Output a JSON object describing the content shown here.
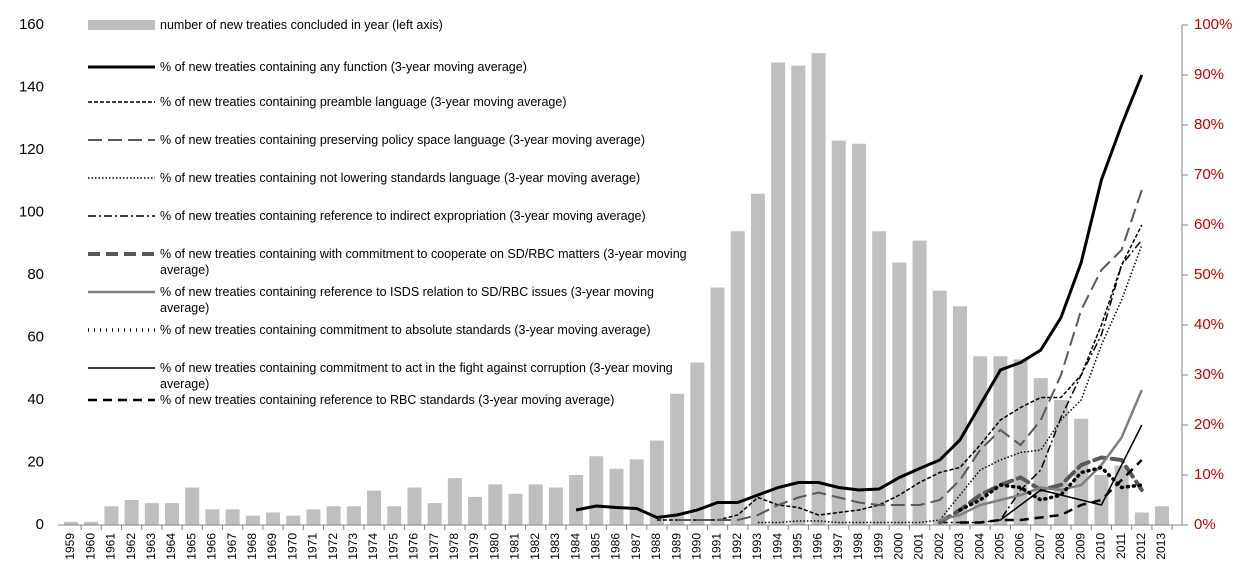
{
  "chart_data": {
    "type": "bar_line",
    "categories": [
      "1959",
      "1960",
      "1961",
      "1962",
      "1963",
      "1964",
      "1965",
      "1966",
      "1967",
      "1968",
      "1969",
      "1970",
      "1971",
      "1972",
      "1973",
      "1974",
      "1975",
      "1976",
      "1977",
      "1978",
      "1979",
      "1980",
      "1981",
      "1982",
      "1983",
      "1984",
      "1985",
      "1986",
      "1987",
      "1988",
      "1989",
      "1990",
      "1991",
      "1992",
      "1993",
      "1994",
      "1995",
      "1996",
      "1997",
      "1998",
      "1999",
      "2000",
      "2001",
      "2002",
      "2003",
      "2004",
      "2005",
      "2006",
      "2007",
      "2008",
      "2009",
      "2010",
      "2011",
      "2012",
      "2013"
    ],
    "bars": {
      "name": "number of new treaties concluded in year (left axis)",
      "color": "#bfbfbf",
      "values": [
        1,
        1,
        6,
        8,
        7,
        7,
        12,
        5,
        5,
        3,
        4,
        3,
        5,
        6,
        6,
        11,
        6,
        12,
        7,
        15,
        9,
        13,
        10,
        13,
        12,
        16,
        22,
        18,
        21,
        27,
        42,
        52,
        76,
        94,
        106,
        148,
        147,
        151,
        123,
        122,
        94,
        84,
        91,
        75,
        70,
        54,
        54,
        53,
        47,
        40,
        34,
        16,
        19,
        4,
        6
      ]
    },
    "series": [
      {
        "name": "% of new treaties containing any function (3-year moving average)",
        "color": "#000000",
        "axis": "y2",
        "values": [
          null,
          null,
          null,
          null,
          null,
          null,
          null,
          null,
          null,
          null,
          null,
          null,
          null,
          null,
          null,
          null,
          null,
          null,
          null,
          null,
          null,
          null,
          null,
          null,
          null,
          3,
          3.8,
          3.5,
          3.3,
          1.5,
          2,
          3,
          4.5,
          4.5,
          6,
          7.5,
          8.5,
          8.5,
          7.5,
          7,
          7.2,
          9.5,
          11.3,
          13,
          17,
          24,
          31,
          32.5,
          35,
          41.5,
          52.5,
          69,
          80,
          90,
          null
        ]
      },
      {
        "name": "% of new treaties containing preamble language (3-year moving average)",
        "color": "#000000",
        "axis": "y2",
        "values": [
          null,
          null,
          null,
          null,
          null,
          null,
          null,
          null,
          null,
          null,
          null,
          null,
          null,
          null,
          null,
          null,
          null,
          null,
          null,
          null,
          null,
          null,
          null,
          null,
          null,
          null,
          null,
          null,
          null,
          1,
          1,
          1,
          1,
          2,
          5.5,
          4,
          3.5,
          2,
          2.5,
          3,
          4,
          6,
          8.5,
          10.5,
          11.5,
          16,
          21,
          23.5,
          25.5,
          25.5,
          30,
          40,
          52,
          60,
          null
        ]
      },
      {
        "name": "% of new treaties containing preserving policy space language (3-year moving average)",
        "color": "#595959",
        "axis": "y2",
        "values": [
          null,
          null,
          null,
          null,
          null,
          null,
          null,
          null,
          null,
          null,
          null,
          null,
          null,
          null,
          null,
          null,
          null,
          null,
          null,
          null,
          null,
          null,
          null,
          null,
          null,
          null,
          null,
          null,
          null,
          null,
          1,
          1,
          1,
          1,
          2,
          4,
          5.5,
          6.5,
          5.5,
          4.5,
          4,
          4,
          4,
          5,
          9,
          15,
          19,
          16,
          21,
          30,
          43,
          51,
          55,
          67,
          null
        ]
      },
      {
        "name": "% of new treaties containing not lowering standards language (3-year moving average)",
        "color": "#000000",
        "axis": "y2",
        "values": [
          null,
          null,
          null,
          null,
          null,
          null,
          null,
          null,
          null,
          null,
          null,
          null,
          null,
          null,
          null,
          null,
          null,
          null,
          null,
          null,
          null,
          null,
          null,
          null,
          null,
          null,
          null,
          null,
          null,
          null,
          null,
          null,
          null,
          null,
          0.5,
          0.5,
          0.8,
          0.8,
          0.5,
          0.5,
          0.5,
          0.5,
          0.5,
          1,
          6,
          11,
          13,
          14.5,
          15,
          21,
          25,
          36,
          45,
          56,
          null
        ]
      },
      {
        "name": "% of new treaties containing reference to indirect expropriation (3-year moving average)",
        "color": "#000000",
        "axis": "y2",
        "values": [
          null,
          null,
          null,
          null,
          null,
          null,
          null,
          null,
          null,
          null,
          null,
          null,
          null,
          null,
          null,
          null,
          null,
          null,
          null,
          null,
          null,
          null,
          null,
          null,
          null,
          null,
          null,
          null,
          null,
          null,
          null,
          null,
          null,
          null,
          null,
          null,
          null,
          null,
          null,
          null,
          null,
          null,
          null,
          0.5,
          0.5,
          0.5,
          1,
          7,
          11,
          21.5,
          30,
          38,
          52,
          57,
          null
        ]
      },
      {
        "name": "% of new treaties containing  with commitment to cooperate on SD/RBC matters (3-year moving average)",
        "color": "#595959",
        "axis": "y2",
        "values": [
          null,
          null,
          null,
          null,
          null,
          null,
          null,
          null,
          null,
          null,
          null,
          null,
          null,
          null,
          null,
          null,
          null,
          null,
          null,
          null,
          null,
          null,
          null,
          null,
          null,
          null,
          null,
          null,
          null,
          null,
          null,
          null,
          null,
          null,
          null,
          null,
          null,
          null,
          null,
          null,
          null,
          null,
          null,
          0.5,
          3,
          6,
          8,
          9.5,
          7,
          8,
          12,
          13.5,
          13,
          7,
          null
        ]
      },
      {
        "name": "% of new treaties containing reference to ISDS relation to SD/RBC issues (3-year moving average)",
        "color": "#7f7f7f",
        "axis": "y2",
        "values": [
          null,
          null,
          null,
          null,
          null,
          null,
          null,
          null,
          null,
          null,
          null,
          null,
          null,
          null,
          null,
          null,
          null,
          null,
          null,
          null,
          null,
          null,
          null,
          null,
          null,
          null,
          null,
          null,
          null,
          null,
          null,
          null,
          null,
          null,
          null,
          null,
          null,
          null,
          null,
          null,
          null,
          null,
          null,
          1,
          2,
          4,
          5,
          6,
          7.5,
          7,
          8,
          12,
          17.5,
          27,
          null
        ]
      },
      {
        "name": "% of new treaties containing commitment to absolute standards (3-year moving average)",
        "color": "#000000",
        "axis": "y2",
        "values": [
          null,
          null,
          null,
          null,
          null,
          null,
          null,
          null,
          null,
          null,
          null,
          null,
          null,
          null,
          null,
          null,
          null,
          null,
          null,
          null,
          null,
          null,
          null,
          null,
          null,
          null,
          null,
          null,
          null,
          null,
          null,
          null,
          null,
          null,
          null,
          null,
          null,
          null,
          null,
          null,
          null,
          null,
          null,
          null,
          3,
          5,
          8,
          7.5,
          5,
          6,
          10.5,
          11.5,
          7.5,
          8,
          null
        ]
      },
      {
        "name": "% of new treaties containing commitment to act in the fight against corruption (3-year moving average)",
        "color": "#000000",
        "axis": "y2",
        "values": [
          null,
          null,
          null,
          null,
          null,
          null,
          null,
          null,
          null,
          null,
          null,
          null,
          null,
          null,
          null,
          null,
          null,
          null,
          null,
          null,
          null,
          null,
          null,
          null,
          null,
          null,
          null,
          null,
          null,
          null,
          null,
          null,
          null,
          null,
          null,
          null,
          null,
          null,
          null,
          null,
          null,
          null,
          null,
          null,
          null,
          null,
          1,
          4,
          7,
          6,
          5,
          4,
          12,
          20,
          null
        ]
      },
      {
        "name": "% of new treaties containing reference to RBC standards (3-year moving average)",
        "color": "#000000",
        "axis": "y2",
        "values": [
          null,
          null,
          null,
          null,
          null,
          null,
          null,
          null,
          null,
          null,
          null,
          null,
          null,
          null,
          null,
          null,
          null,
          null,
          null,
          null,
          null,
          null,
          null,
          null,
          null,
          null,
          null,
          null,
          null,
          null,
          null,
          null,
          null,
          null,
          null,
          null,
          null,
          null,
          null,
          null,
          null,
          null,
          null,
          null,
          0.5,
          0.5,
          1,
          1,
          1.5,
          2,
          4,
          5,
          9,
          13,
          null
        ]
      }
    ],
    "ylim": [
      0,
      160
    ],
    "yticks": [
      0,
      20,
      40,
      60,
      80,
      100,
      120,
      140,
      160
    ],
    "y2lim": [
      0,
      100
    ],
    "y2ticks": [
      {
        "value": 0,
        "label": "0%"
      },
      {
        "value": 10,
        "label": "10%"
      },
      {
        "value": 20,
        "label": "20%"
      },
      {
        "value": 30,
        "label": "30%"
      },
      {
        "value": 40,
        "label": "40%"
      },
      {
        "value": 50,
        "label": "50%"
      },
      {
        "value": 60,
        "label": "60%"
      },
      {
        "value": 70,
        "label": "70%"
      },
      {
        "value": 80,
        "label": "80%"
      },
      {
        "value": 90,
        "label": "90%"
      },
      {
        "value": 100,
        "label": "100%"
      }
    ],
    "y2_color": "#c00000"
  }
}
